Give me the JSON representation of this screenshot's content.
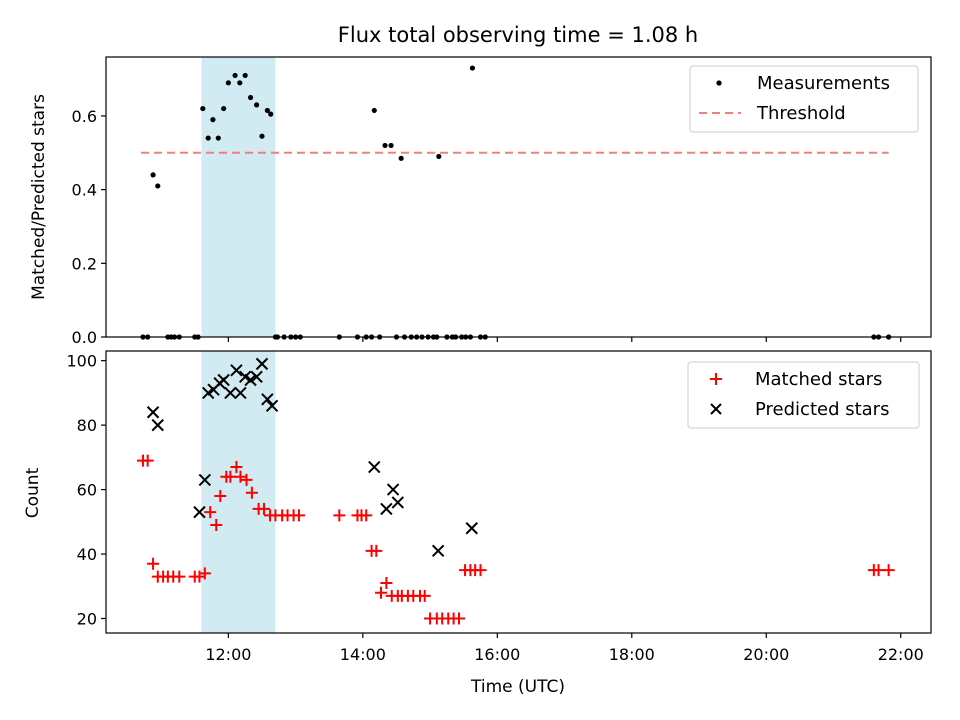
{
  "chart_data": {
    "title": "Flux total observing time = 1.08 h",
    "xlabel": "Time (UTC)",
    "x_ticks": [
      "12:00",
      "14:00",
      "16:00",
      "18:00",
      "20:00",
      "22:00"
    ],
    "x_tick_hours": [
      12,
      14,
      16,
      18,
      20,
      22
    ],
    "xlim_hours": [
      10.18,
      22.45
    ],
    "highlight_span_hours": [
      11.6,
      12.7
    ],
    "colors": {
      "measurements": "#000000",
      "threshold": "#f08080",
      "matched": "#ff0000",
      "predicted": "#000000",
      "span": "#add8e6"
    },
    "panels": [
      {
        "type": "scatter",
        "ylabel": "Matched/Predicted stars",
        "ylim": [
          0,
          0.76
        ],
        "y_ticks": [
          "0.0",
          "0.2",
          "0.4",
          "0.6"
        ],
        "y_tick_values": [
          0,
          0.2,
          0.4,
          0.6
        ],
        "legend_position": "top-right",
        "legend": [
          "Measurements",
          "Threshold"
        ],
        "threshold": {
          "value": 0.5,
          "x_range_hours": [
            10.7,
            21.82
          ]
        },
        "measurements_x_hours": [
          10.73,
          10.8,
          10.88,
          10.95,
          11.1,
          11.15,
          11.2,
          11.27,
          11.5,
          11.55,
          11.62,
          11.7,
          11.77,
          11.85,
          11.93,
          12.0,
          12.1,
          12.17,
          12.25,
          12.33,
          12.42,
          12.5,
          12.58,
          12.63,
          12.7,
          12.73,
          12.83,
          12.93,
          13.0,
          13.07,
          13.65,
          13.92,
          14.05,
          14.13,
          14.17,
          14.25,
          14.33,
          14.42,
          14.5,
          14.57,
          14.62,
          14.72,
          14.8,
          14.88,
          14.97,
          15.05,
          15.1,
          15.13,
          15.25,
          15.33,
          15.38,
          15.47,
          15.53,
          15.6,
          15.63,
          15.75,
          15.82,
          21.6,
          21.67,
          21.82
        ],
        "measurements_y": [
          0,
          0,
          0.44,
          0.41,
          0,
          0,
          0,
          0,
          0,
          0,
          0.62,
          0.54,
          0.59,
          0.54,
          0.62,
          0.69,
          0.71,
          0.69,
          0.71,
          0.65,
          0.63,
          0.545,
          0.615,
          0.605,
          0,
          0,
          0,
          0,
          0,
          0,
          0,
          0,
          0,
          0,
          0.615,
          0,
          0.52,
          0.52,
          0,
          0.485,
          0,
          0,
          0,
          0,
          0,
          0,
          0,
          0.49,
          0,
          0,
          0,
          0,
          0,
          0,
          0.73,
          0,
          0,
          0,
          0,
          0
        ]
      },
      {
        "type": "scatter",
        "ylabel": "Count",
        "ylim": [
          15.5,
          103
        ],
        "y_ticks": [
          "20",
          "40",
          "60",
          "80",
          "100"
        ],
        "y_tick_values": [
          20,
          40,
          60,
          80,
          100
        ],
        "legend_position": "top-right",
        "legend": [
          "Matched stars",
          "Predicted stars"
        ],
        "matched_x_hours": [
          10.73,
          10.8,
          10.88,
          10.95,
          11.03,
          11.1,
          11.18,
          11.27,
          11.5,
          11.57,
          11.65,
          11.73,
          11.82,
          11.88,
          11.97,
          12.03,
          12.12,
          12.18,
          12.27,
          12.35,
          12.45,
          12.53,
          12.62,
          12.7,
          12.8,
          12.88,
          12.97,
          13.05,
          13.65,
          13.92,
          13.98,
          14.05,
          14.13,
          14.2,
          14.27,
          14.35,
          14.43,
          14.52,
          14.58,
          14.67,
          14.75,
          14.85,
          14.92,
          15.0,
          15.1,
          15.18,
          15.27,
          15.35,
          15.43,
          15.52,
          15.6,
          15.67,
          15.75,
          21.6,
          21.67,
          21.82
        ],
        "matched_y": [
          69,
          69,
          37,
          33,
          33,
          33,
          33,
          33,
          33,
          33,
          34,
          53,
          49,
          58,
          64,
          64,
          67,
          64,
          63,
          59,
          54,
          54,
          52,
          52,
          52,
          52,
          52,
          52,
          52,
          52,
          52,
          52,
          41,
          41,
          28,
          31,
          27,
          27,
          27,
          27,
          27,
          27,
          27,
          20,
          20,
          20,
          20,
          20,
          20,
          35,
          35,
          35,
          35,
          35,
          35,
          35
        ],
        "predicted_x_hours": [
          10.88,
          10.95,
          11.57,
          11.65,
          11.7,
          11.78,
          11.87,
          11.93,
          12.03,
          12.12,
          12.18,
          12.25,
          12.33,
          12.42,
          12.5,
          12.58,
          12.65,
          14.17,
          14.35,
          14.45,
          14.52,
          15.12,
          15.62
        ],
        "predicted_y": [
          84,
          80,
          53,
          63,
          90,
          91,
          93,
          94,
          90,
          97,
          90,
          95,
          94,
          95,
          99,
          88,
          86,
          67,
          54,
          60,
          56,
          41,
          48
        ]
      }
    ]
  }
}
